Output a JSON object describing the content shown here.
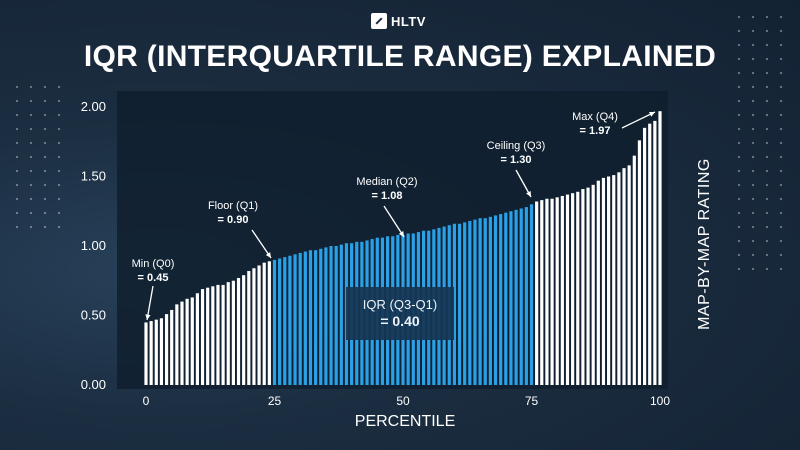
{
  "brand": {
    "logo_text": "HLTV"
  },
  "header": {
    "title": "IQR (INTERQUARTILE RANGE) EXPLAINED"
  },
  "annotations": {
    "min": {
      "label": "Min (Q0)",
      "value": "= 0.45"
    },
    "floor": {
      "label": "Floor (Q1)",
      "value": "= 0.90"
    },
    "median": {
      "label": "Median (Q2)",
      "value": "= 1.08"
    },
    "ceiling": {
      "label": "Ceiling (Q3)",
      "value": "= 1.30"
    },
    "max": {
      "label": "Max (Q4)",
      "value": "= 1.97"
    },
    "iqr": {
      "label": "IQR (Q3-Q1)",
      "value": "= 0.40"
    }
  },
  "colors": {
    "background": "#1b2d40",
    "outside_iqr": "#ffffff",
    "inside_iqr": "#2aa0e6",
    "plot_area": "#0f1e2e"
  },
  "chart_data": {
    "type": "bar",
    "title": "IQR (INTERQUARTILE RANGE) EXPLAINED",
    "xlabel": "PERCENTILE",
    "ylabel": "MAP-BY-MAP RATING",
    "xlim": [
      0,
      100
    ],
    "ylim": [
      0,
      2.0
    ],
    "xticks": [
      0,
      25,
      50,
      75,
      100
    ],
    "yticks": [
      "0.00",
      "0.50",
      "1.00",
      "1.50",
      "2.00"
    ],
    "highlight_range": [
      25,
      75
    ],
    "grid": false,
    "values": [
      0.45,
      0.46,
      0.47,
      0.48,
      0.51,
      0.54,
      0.58,
      0.6,
      0.62,
      0.63,
      0.66,
      0.69,
      0.7,
      0.71,
      0.72,
      0.72,
      0.74,
      0.75,
      0.77,
      0.79,
      0.82,
      0.84,
      0.86,
      0.88,
      0.89,
      0.9,
      0.91,
      0.92,
      0.93,
      0.94,
      0.95,
      0.96,
      0.97,
      0.97,
      0.98,
      0.99,
      1.0,
      1.0,
      1.01,
      1.02,
      1.02,
      1.03,
      1.03,
      1.04,
      1.05,
      1.06,
      1.06,
      1.07,
      1.07,
      1.08,
      1.08,
      1.09,
      1.09,
      1.1,
      1.11,
      1.11,
      1.12,
      1.13,
      1.14,
      1.15,
      1.16,
      1.16,
      1.17,
      1.18,
      1.19,
      1.2,
      1.2,
      1.21,
      1.22,
      1.23,
      1.24,
      1.25,
      1.26,
      1.27,
      1.28,
      1.3,
      1.32,
      1.33,
      1.34,
      1.34,
      1.35,
      1.36,
      1.37,
      1.38,
      1.39,
      1.41,
      1.42,
      1.44,
      1.47,
      1.49,
      1.5,
      1.51,
      1.53,
      1.56,
      1.58,
      1.65,
      1.76,
      1.85,
      1.88,
      1.9,
      1.97
    ]
  }
}
